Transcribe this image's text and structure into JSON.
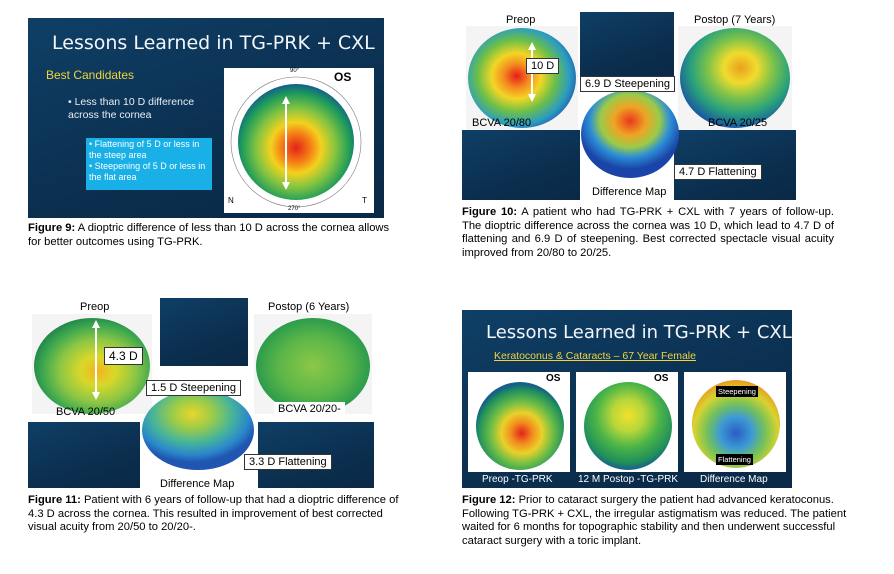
{
  "fig9": {
    "slide_title": "Lessons Learned in TG-PRK + CXL",
    "subtitle": "Best Candidates",
    "bullet": "• Less than 10 D difference across the cornea",
    "callout1": "• Flattening of 5 D or less in the steep area",
    "callout2": "• Steepening of 5 D or less in the flat area",
    "eye": "OS",
    "deg_top": "90°",
    "deg_bottom": "270°",
    "n_label": "N",
    "t_label": "T",
    "caption_bold": "Figure 9:",
    "caption_text": " A dioptric difference of less than 10 D across the cornea allows for better outcomes using TG-PRK."
  },
  "fig10": {
    "preop": "Preop",
    "postop": "Postop (7 Years)",
    "ten_d": "10 D",
    "steepening": "6.9 D Steepening",
    "flattening": "4.7 D Flattening",
    "bcva_pre": "BCVA 20/80",
    "bcva_post": "BCVA 20/25",
    "diffmap": "Difference Map",
    "caption_bold": "Figure 10:",
    "caption_text": " A patient who had TG-PRK + CXL with 7 years of follow-up. The dioptric difference across the cornea was 10 D, which lead to 4.7 D of flattening and 6.9 D of steepening. Best corrected spectacle visual acuity improved from 20/80 to 20/25."
  },
  "fig11": {
    "preop": "Preop",
    "postop": "Postop (6 Years)",
    "four_d": "4.3 D",
    "steepening": "1.5 D Steepening",
    "flattening": "3.3 D Flattening",
    "bcva_pre": "BCVA 20/50",
    "bcva_post": "BCVA 20/20-",
    "diffmap": "Difference Map",
    "caption_bold": "Figure 11:",
    "caption_text": " Patient with 6 years of follow-up that had a dioptric difference of 4.3 D across the cornea. This resulted in improvement of best corrected visual acuity from 20/50 to 20/20-."
  },
  "fig12": {
    "slide_title": "Lessons Learned in TG-PRK + CXL",
    "subtitle": "Keratoconus & Cataracts – 67 Year Female",
    "label_preop": "Preop -TG-PRK",
    "label_postop": "12 M Postop -TG-PRK",
    "label_diff": "Difference Map",
    "steepening": "Steepening",
    "flattening": "Flattening",
    "eye": "OS",
    "caption_bold": "Figure 12:",
    "caption_text": " Prior to cataract surgery the patient had advanced keratoconus. Following TG-PRK + CXL, the irregular astigmatism was reduced. The patient waited for 6 months for topographic stability and then underwent successful cataract surgery with a toric implant."
  }
}
